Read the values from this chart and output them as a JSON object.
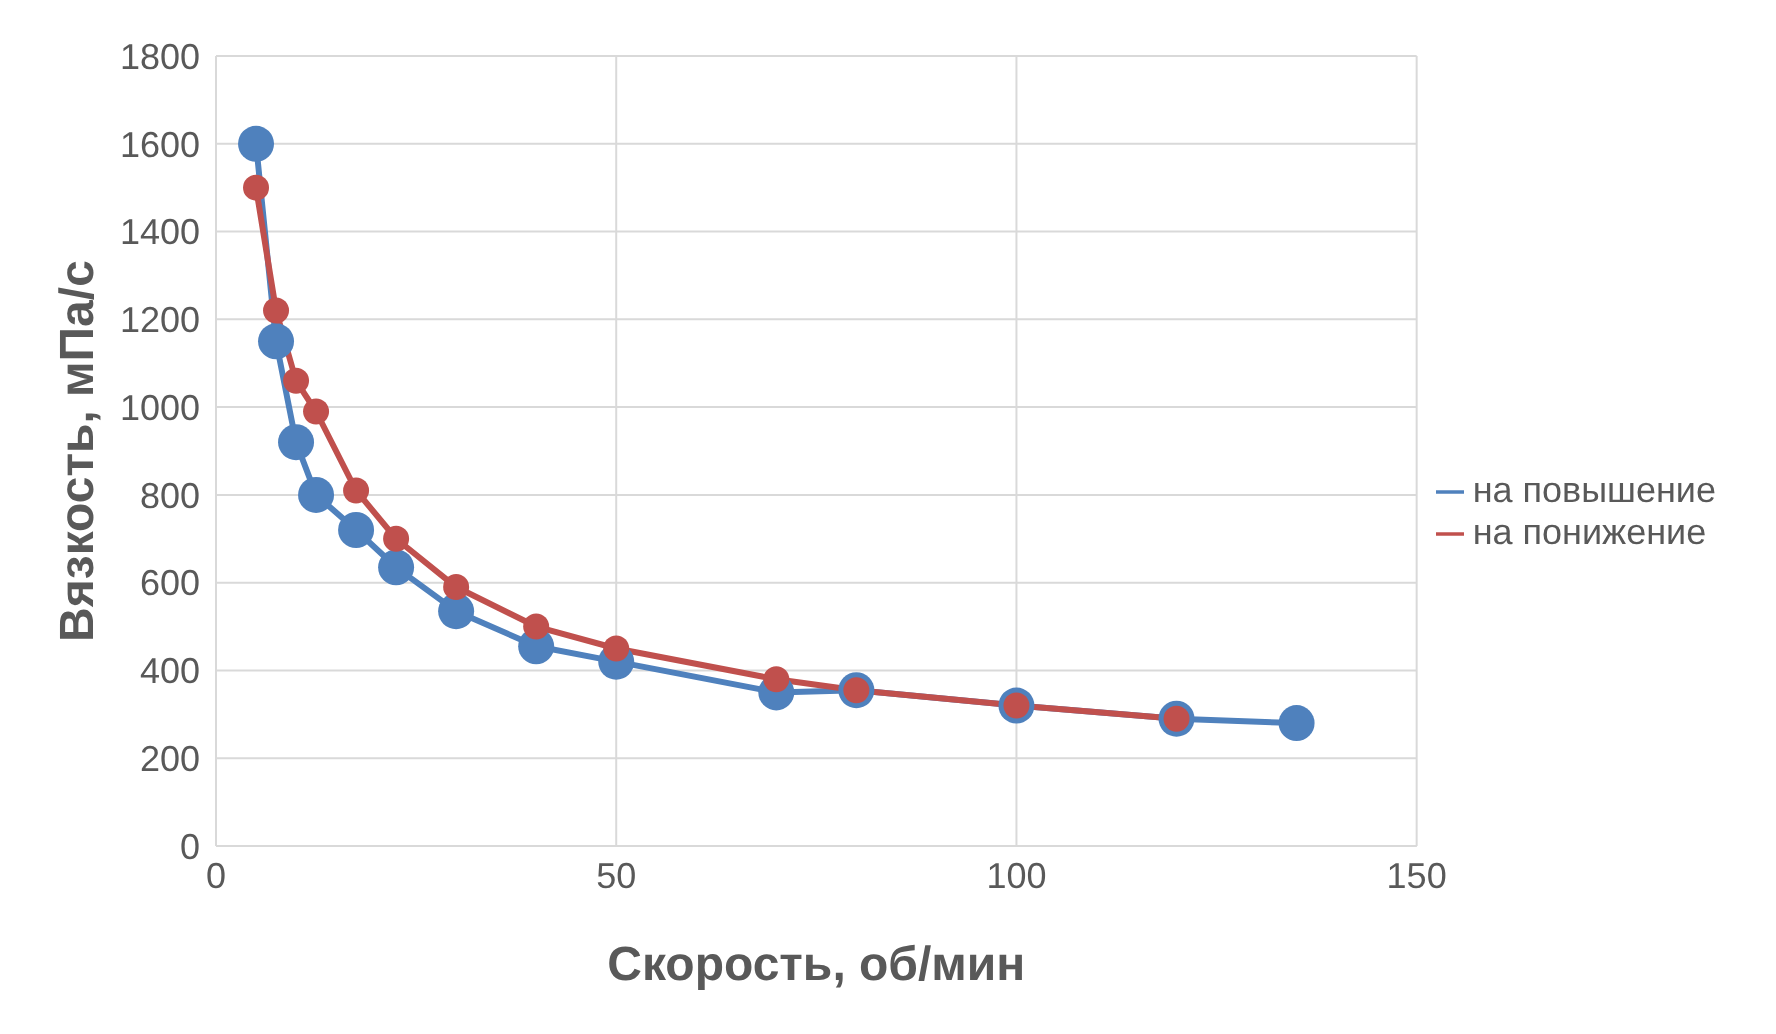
{
  "chart_data": {
    "type": "line",
    "xlabel": "Скорость, об/мин",
    "ylabel": "Вязкость, мПа/с",
    "series": [
      {
        "name": "на повышение",
        "color": "#4f81bd",
        "x": [
          5,
          7.5,
          10,
          12.5,
          17.5,
          22.5,
          30,
          40,
          50,
          70,
          80,
          100,
          120,
          135
        ],
        "values": [
          1600,
          1150,
          920,
          800,
          720,
          635,
          535,
          455,
          420,
          350,
          355,
          320,
          290,
          280
        ]
      },
      {
        "name": "на понижение",
        "color": "#c0504d",
        "x": [
          5,
          7.5,
          10,
          12.5,
          17.5,
          22.5,
          30,
          40,
          50,
          70,
          80,
          100,
          120
        ],
        "values": [
          1500,
          1220,
          1060,
          990,
          810,
          700,
          590,
          500,
          450,
          380,
          355,
          320,
          290
        ]
      }
    ],
    "xlim": [
      0,
      150
    ],
    "xticks": [
      0,
      50,
      100,
      150
    ],
    "ylim": [
      0,
      1800
    ],
    "yticks": [
      0,
      200,
      400,
      600,
      800,
      1000,
      1200,
      1400,
      1600,
      1800
    ],
    "grid": true,
    "legend": "right",
    "marker": "circle",
    "line_style": "solid"
  }
}
